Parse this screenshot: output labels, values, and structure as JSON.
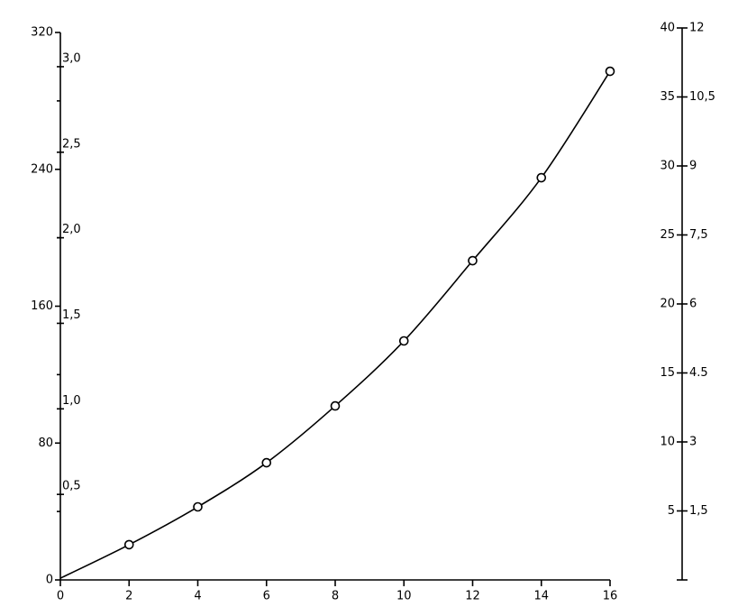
{
  "chart_data": {
    "type": "line",
    "series": [
      {
        "type": "line",
        "color": "#000000",
        "x": [
          0,
          2,
          4,
          6,
          8,
          10,
          12,
          14,
          16
        ],
        "values": [
          1,
          20.6,
          42.7,
          68.5,
          101.7,
          139.7,
          186.6,
          235.1,
          297.3
        ]
      },
      {
        "type": "scatter",
        "color": "#000000",
        "x": [
          2,
          4,
          6,
          8,
          10,
          12,
          14,
          16
        ],
        "values": [
          20.6,
          42.7,
          68.5,
          101.7,
          139.7,
          186.6,
          235.1,
          297.3
        ]
      }
    ],
    "xlim": [
      0,
      16
    ],
    "xticks": [
      0,
      2,
      4,
      6,
      8,
      10,
      12,
      14,
      16
    ],
    "ylim": [
      0,
      320
    ],
    "yticks": [
      0,
      80,
      160,
      240,
      320
    ],
    "yminorticks": [
      40,
      120,
      200,
      280
    ],
    "y2lim": [
      0,
      3.2
    ],
    "y2ticks": [
      {
        "value": 0.5,
        "label": "0,5"
      },
      {
        "value": 1.0,
        "label": "1,0"
      },
      {
        "value": 1.5,
        "label": "1,5"
      },
      {
        "value": 2.0,
        "label": "2,0"
      },
      {
        "value": 2.5,
        "label": "2,5"
      },
      {
        "value": 3.0,
        "label": "3,0"
      }
    ],
    "right_axis": {
      "ylim": [
        0,
        40
      ],
      "yticks": [
        5,
        10,
        15,
        20,
        25,
        30,
        35,
        40
      ],
      "y2lim": [
        0,
        12
      ],
      "y2ticks": [
        {
          "value": 1.5,
          "label": "1,5"
        },
        3,
        4.5,
        6,
        {
          "value": 7.5,
          "label": "7,5"
        },
        9,
        {
          "value": 10.5,
          "label": "10,5"
        },
        12
      ]
    }
  }
}
